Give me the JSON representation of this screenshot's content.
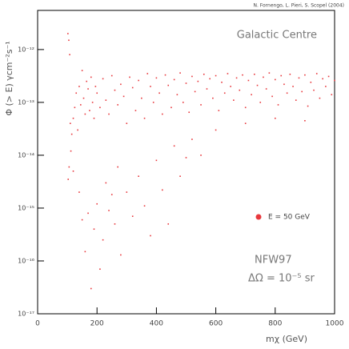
{
  "chart_data": {
    "type": "scatter",
    "credit": "N. Fornengo, L. Pieri, S. Scopel (2004)",
    "title": "Galactic Centre",
    "x_label": "mχ (GeV)",
    "y_label": "Φ (> E) γcm⁻²s⁻¹",
    "annotations": [
      "NFW97",
      "ΔΩ = 10⁻⁵ sr"
    ],
    "xlim": [
      0,
      1000
    ],
    "xticks": [
      0,
      200,
      400,
      600,
      800,
      1000
    ],
    "ylim": [
      1e-17,
      5.5e-12
    ],
    "y_log": true,
    "yticks": [
      {
        "value": 1e-17,
        "label": "10⁻¹⁷"
      },
      {
        "value": 1e-16,
        "label": "10⁻¹⁶"
      },
      {
        "value": 1e-15,
        "label": "10⁻¹⁵"
      },
      {
        "value": 1e-14,
        "label": "10⁻¹⁴"
      },
      {
        "value": 1e-13,
        "label": "10⁻¹³"
      },
      {
        "value": 1e-12,
        "label": "10⁻¹²"
      }
    ],
    "series": [
      {
        "name": "E = 50 GeV",
        "color": "#e8383d",
        "x": [
          102,
          105,
          108,
          110,
          103,
          106,
          112,
          115,
          120,
          125,
          130,
          135,
          140,
          145,
          150,
          155,
          160,
          165,
          170,
          175,
          180,
          185,
          190,
          195,
          200,
          210,
          220,
          230,
          240,
          250,
          260,
          270,
          280,
          290,
          300,
          310,
          320,
          330,
          340,
          350,
          360,
          370,
          380,
          390,
          400,
          410,
          420,
          430,
          440,
          450,
          460,
          470,
          480,
          490,
          500,
          510,
          520,
          530,
          540,
          550,
          560,
          570,
          580,
          590,
          600,
          610,
          620,
          630,
          640,
          650,
          660,
          670,
          680,
          690,
          700,
          710,
          720,
          730,
          740,
          750,
          760,
          770,
          780,
          790,
          800,
          810,
          820,
          830,
          840,
          850,
          860,
          870,
          880,
          890,
          900,
          910,
          920,
          930,
          940,
          950,
          960,
          970,
          980,
          990,
          1000,
          120,
          140,
          150,
          160,
          170,
          180,
          190,
          200,
          210,
          220,
          230,
          240,
          250,
          260,
          270,
          280,
          300,
          320,
          340,
          360,
          380,
          400,
          420,
          440,
          460,
          480,
          500,
          520,
          550,
          600,
          700,
          800,
          900
        ],
        "values": [
          2e-12,
          1.5e-12,
          8e-13,
          4e-14,
          3.5e-15,
          6e-15,
          1.2e-14,
          2.5e-14,
          5e-14,
          8e-14,
          1.5e-13,
          3e-14,
          2e-13,
          9e-14,
          4e-13,
          1.2e-13,
          6e-14,
          2.5e-13,
          1.8e-13,
          7e-14,
          3e-13,
          1e-13,
          5e-14,
          2e-13,
          1.5e-13,
          8e-14,
          2.8e-13,
          1.1e-13,
          6e-14,
          3.2e-13,
          1.7e-13,
          9e-14,
          2.2e-13,
          1.3e-13,
          4e-14,
          3e-13,
          1.9e-13,
          7e-14,
          2.6e-13,
          1.2e-13,
          5e-14,
          3.5e-13,
          2e-13,
          1e-13,
          2.9e-13,
          1.5e-13,
          6e-14,
          3.3e-13,
          2.1e-13,
          8e-14,
          2.7e-13,
          1.4e-13,
          3.6e-13,
          1e-13,
          2.3e-13,
          6.5e-14,
          3.1e-13,
          1.6e-13,
          2.5e-13,
          9e-14,
          3.4e-13,
          1.8e-13,
          2.8e-13,
          1.2e-13,
          3.2e-13,
          7e-14,
          2.4e-13,
          1.5e-13,
          3.5e-13,
          2e-13,
          1.1e-13,
          2.9e-13,
          1.7e-13,
          3.3e-13,
          8e-14,
          2.6e-13,
          1.4e-13,
          3.4e-13,
          2.1e-13,
          1e-13,
          3e-13,
          1.8e-13,
          3.6e-13,
          1.3e-13,
          2.7e-13,
          9e-14,
          3.2e-13,
          2.2e-13,
          1.5e-13,
          3.4e-13,
          2e-13,
          1.1e-13,
          2.9e-13,
          1.6e-13,
          3.3e-13,
          8.5e-14,
          2.4e-13,
          1.7e-13,
          3.5e-13,
          1.2e-13,
          2.8e-13,
          2e-13,
          3.1e-13,
          1.4e-13,
          2.6e-13,
          5e-15,
          2e-15,
          6e-16,
          1.5e-16,
          8e-16,
          3e-17,
          4e-16,
          1.2e-15,
          7e-17,
          2.5e-16,
          3e-15,
          9e-16,
          1.8e-15,
          5e-16,
          6e-15,
          1.3e-16,
          2e-15,
          7e-16,
          4e-15,
          1.1e-15,
          3e-16,
          8e-15,
          2.2e-15,
          5e-16,
          1.5e-14,
          4e-15,
          9e-15,
          2e-14,
          1e-14,
          3e-14,
          4e-14,
          5e-14,
          4.5e-14
        ]
      }
    ]
  }
}
